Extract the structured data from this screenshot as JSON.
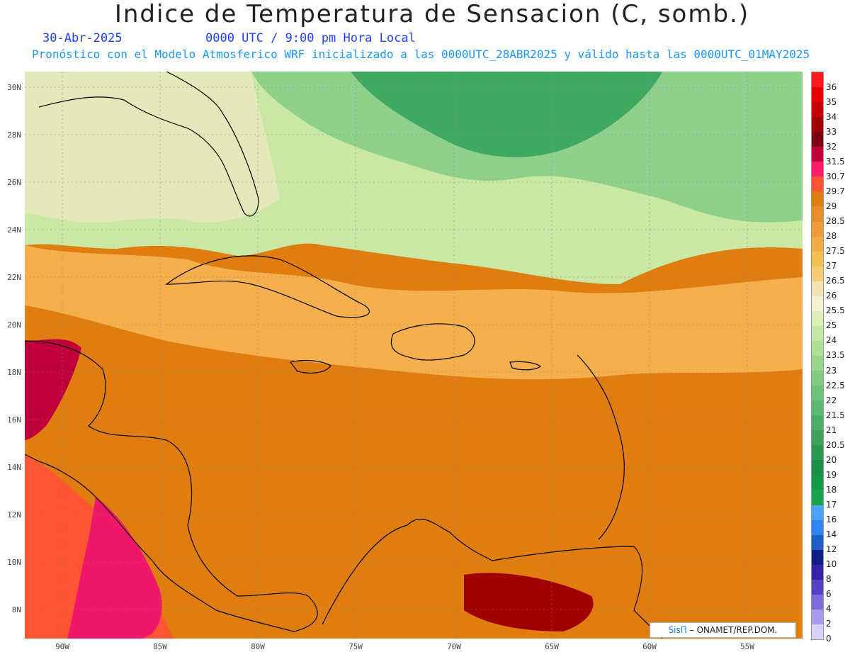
{
  "header": {
    "title": "Indice de Temperatura de Sensacion (C, somb.)",
    "date": "30-Abr-2025",
    "time": "0000 UTC / 9:00 pm Hora Local",
    "model_info": "Pronóstico con el Modelo Atmosferico WRF inicializado a las 0000UTC_28ABR2025 y válido hasta las  0000UTC_01MAY2025"
  },
  "lat_labels": [
    "30N",
    "28N",
    "26N",
    "24N",
    "22N",
    "20N",
    "18N",
    "16N",
    "14N",
    "12N",
    "10N",
    "8N"
  ],
  "lon_labels": [
    "90W",
    "85W",
    "80W",
    "75W",
    "70W",
    "65W",
    "60W",
    "55W"
  ],
  "colorbar": {
    "labels": [
      "36",
      "35",
      "34",
      "33",
      "32",
      "31.5",
      "30.7",
      "29.7",
      "29",
      "28.5",
      "28",
      "27.5",
      "27",
      "26.5",
      "26",
      "25.5",
      "25",
      "24",
      "23.5",
      "23",
      "22.5",
      "22",
      "21.5",
      "21",
      "20.5",
      "20",
      "19",
      "18",
      "17",
      "16",
      "14",
      "12",
      "10",
      "8",
      "6",
      "4",
      "2",
      "0"
    ],
    "colors": [
      "#ff1a1a",
      "#e60000",
      "#c40000",
      "#a00000",
      "#7d0010",
      "#c0003a",
      "#ff1a6a",
      "#ff5533",
      "#e07d10",
      "#ea8c2a",
      "#f19a3a",
      "#f5aa45",
      "#f7bd55",
      "#f8cc73",
      "#f3e3b3",
      "#f2f2d2",
      "#ddefb8",
      "#c3e6a2",
      "#aee095",
      "#98d68b",
      "#80cc80",
      "#6cc378",
      "#5bba6f",
      "#4aaf66",
      "#3ea25c",
      "#2b9952",
      "#1a8f48",
      "#119c44",
      "#16a34a",
      "#4aa3ff",
      "#2a86f0",
      "#1d5ec8",
      "#0f1f8a",
      "#3322aa",
      "#5540c8",
      "#7f6ae0",
      "#a69cf0",
      "#d5d1f8"
    ]
  },
  "credit": {
    "brand": "SisΠ",
    "text": " – ONAMET/REP.DOM."
  }
}
